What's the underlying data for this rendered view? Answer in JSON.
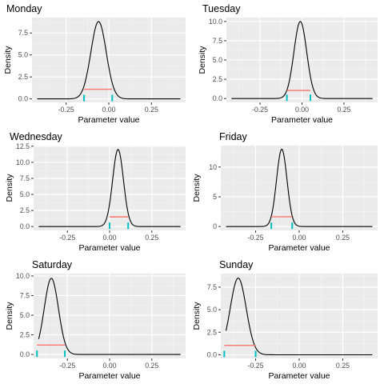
{
  "colors": {
    "panel_bg": "#EBEBEB",
    "grid_major": "#FFFFFF",
    "grid_minor": "#F5F5F5",
    "curve": "#000000",
    "interval": "#F8766D",
    "interval_end": "#00BFC4",
    "tick_text": "#4D4D4D",
    "label_text": "#000000"
  },
  "chart_data": [
    {
      "type": "line",
      "title": "Monday",
      "xlabel": "Parameter value",
      "ylabel": "Density",
      "x_ticks": [
        -0.25,
        0,
        0.25
      ],
      "x_tick_labels": [
        "-0.25",
        "0.00",
        "0.25"
      ],
      "y_ticks": [
        0,
        2.5,
        5,
        7.5
      ],
      "y_tick_labels": [
        "0.0",
        "2.5",
        "5.0",
        "7.5"
      ],
      "xlim": [
        -0.45,
        0.45
      ],
      "ylim": [
        -0.4,
        9.25
      ],
      "curve": {
        "mean": -0.06,
        "sd": 0.045,
        "peak": 8.8
      },
      "interval": {
        "low": -0.145,
        "high": 0.02,
        "y": 1.1
      }
    },
    {
      "type": "line",
      "title": "Tuesday",
      "xlabel": "Parameter value",
      "ylabel": "Density",
      "x_ticks": [
        -0.25,
        0,
        0.25
      ],
      "x_tick_labels": [
        "-0.25",
        "0.00",
        "0.25"
      ],
      "y_ticks": [
        0,
        2.5,
        5,
        7.5,
        10
      ],
      "y_tick_labels": [
        "0.0",
        "2.5",
        "5.0",
        "7.5",
        "10.0"
      ],
      "xlim": [
        -0.45,
        0.45
      ],
      "ylim": [
        -0.5,
        10.5
      ],
      "curve": {
        "mean": -0.01,
        "sd": 0.038,
        "peak": 10.0
      },
      "interval": {
        "low": -0.09,
        "high": 0.05,
        "y": 1.05
      }
    },
    {
      "type": "line",
      "title": "Wednesday",
      "xlabel": "Parameter value",
      "ylabel": "Density",
      "x_ticks": [
        -0.25,
        0,
        0.25
      ],
      "x_tick_labels": [
        "-0.25",
        "0.00",
        "0.25"
      ],
      "y_ticks": [
        0,
        2.5,
        5,
        7.5,
        10,
        12.5
      ],
      "y_tick_labels": [
        "0.0",
        "2.5",
        "5.0",
        "7.5",
        "10.0",
        "12.5"
      ],
      "xlim": [
        -0.45,
        0.45
      ],
      "ylim": [
        -0.6,
        12.6
      ],
      "curve": {
        "mean": 0.05,
        "sd": 0.032,
        "peak": 12.0
      },
      "interval": {
        "low": 0.0,
        "high": 0.11,
        "y": 1.5
      }
    },
    {
      "type": "line",
      "title": "Friday",
      "xlabel": "Parameter value",
      "ylabel": "Density",
      "x_ticks": [
        -0.25,
        0,
        0.25
      ],
      "x_tick_labels": [
        "-0.25",
        "0.00",
        "0.25"
      ],
      "y_ticks": [
        0,
        5,
        10
      ],
      "y_tick_labels": [
        "0",
        "5",
        "10"
      ],
      "xlim": [
        -0.45,
        0.45
      ],
      "ylim": [
        -0.65,
        13.6
      ],
      "curve": {
        "mean": -0.1,
        "sd": 0.03,
        "peak": 13.0
      },
      "interval": {
        "low": -0.16,
        "high": -0.04,
        "y": 1.65
      }
    },
    {
      "type": "line",
      "title": "Saturday",
      "xlabel": "Parameter value",
      "ylabel": "Density",
      "x_ticks": [
        -0.25,
        0,
        0.25
      ],
      "x_tick_labels": [
        "-0.25",
        "0.00",
        "0.25"
      ],
      "y_ticks": [
        0,
        2.5,
        5,
        7.5,
        10
      ],
      "y_tick_labels": [
        "0.0",
        "2.5",
        "5.0",
        "7.5",
        "10.0"
      ],
      "xlim": [
        -0.45,
        0.45
      ],
      "ylim": [
        -0.5,
        10.3
      ],
      "curve": {
        "mean": -0.345,
        "sd": 0.042,
        "peak": 9.7
      },
      "interval": {
        "low": -0.43,
        "high": -0.265,
        "y": 1.2
      }
    },
    {
      "type": "line",
      "title": "Sunday",
      "xlabel": "Parameter value",
      "ylabel": "Density",
      "x_ticks": [
        -0.25,
        0,
        0.25
      ],
      "x_tick_labels": [
        "-0.25",
        "0.00",
        "0.25"
      ],
      "y_ticks": [
        0,
        2.5,
        5,
        7.5
      ],
      "y_tick_labels": [
        "0.0",
        "2.5",
        "5.0",
        "7.5"
      ],
      "xlim": [
        -0.45,
        0.45
      ],
      "ylim": [
        -0.4,
        9.0
      ],
      "curve": {
        "mean": -0.35,
        "sd": 0.046,
        "peak": 8.5
      },
      "interval": {
        "low": -0.43,
        "high": -0.25,
        "y": 1.05
      }
    }
  ]
}
